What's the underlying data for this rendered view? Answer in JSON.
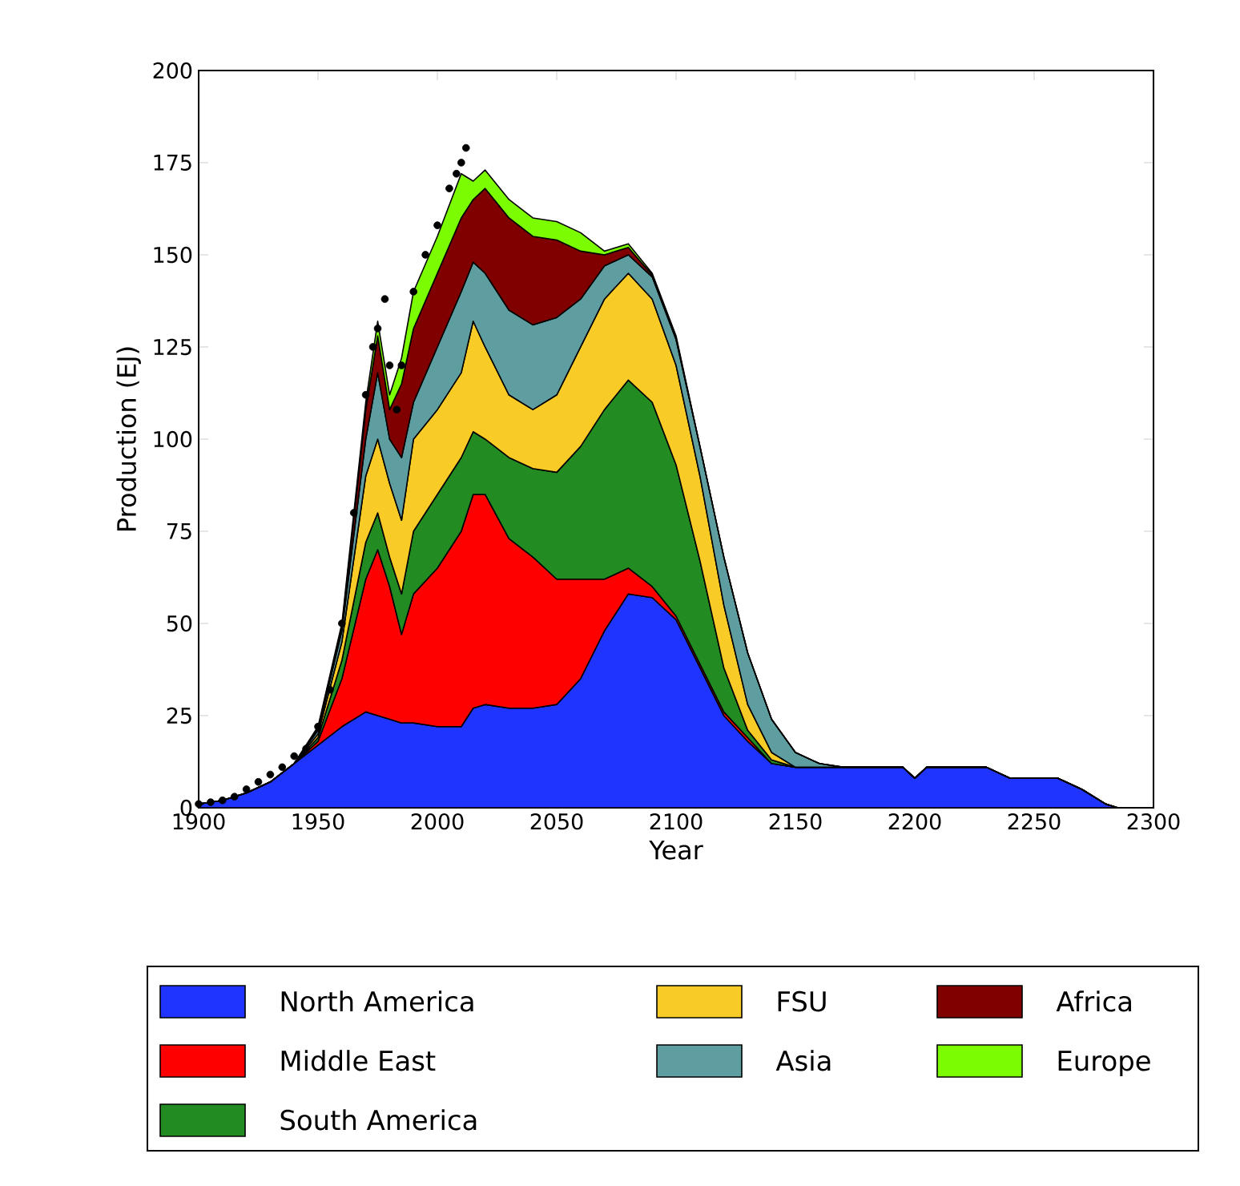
{
  "chart_data": {
    "type": "area",
    "xlabel": "Year",
    "ylabel": "Production (EJ)",
    "stacked": true,
    "legend": "bottom",
    "xlim": [
      1900,
      2300
    ],
    "ylim": [
      0,
      200
    ],
    "xticks": [
      1900,
      1950,
      2000,
      2050,
      2100,
      2150,
      2200,
      2250,
      2300
    ],
    "yticks": [
      0,
      25,
      50,
      75,
      100,
      125,
      150,
      175,
      200
    ],
    "x": [
      1900,
      1910,
      1920,
      1930,
      1940,
      1950,
      1960,
      1970,
      1975,
      1980,
      1985,
      1990,
      2000,
      2010,
      2015,
      2020,
      2030,
      2040,
      2050,
      2060,
      2070,
      2080,
      2090,
      2100,
      2110,
      2120,
      2130,
      2140,
      2150,
      2160,
      2170,
      2180,
      2190,
      2195,
      2200,
      2205,
      2220,
      2230,
      2240,
      2250,
      2260,
      2270,
      2280,
      2285
    ],
    "series": [
      {
        "name": "North America",
        "color": "#1f35ff",
        "values": [
          1,
          2,
          4,
          7,
          12,
          17,
          22,
          26,
          25,
          24,
          23,
          23,
          22,
          22,
          27,
          28,
          27,
          27,
          28,
          35,
          48,
          58,
          57,
          51,
          38,
          25,
          18,
          12,
          11,
          11,
          11,
          11,
          11,
          11,
          8,
          11,
          11,
          11,
          8,
          8,
          8,
          5,
          1,
          0
        ]
      },
      {
        "name": "Middle East",
        "color": "#ff0000",
        "values": [
          0,
          0,
          0,
          0,
          0,
          1,
          13,
          36,
          45,
          36,
          24,
          35,
          43,
          53,
          58,
          57,
          46,
          41,
          34,
          27,
          14,
          7,
          3,
          1,
          1,
          1,
          1,
          0,
          0,
          0,
          0,
          0,
          0,
          0,
          0,
          0,
          0,
          0,
          0,
          0,
          0,
          0,
          0,
          0
        ]
      },
      {
        "name": "South America",
        "color": "#228b22",
        "values": [
          0,
          0,
          0,
          0,
          0,
          1,
          5,
          10,
          10,
          8,
          11,
          17,
          20,
          20,
          17,
          15,
          22,
          24,
          29,
          36,
          46,
          51,
          50,
          41,
          28,
          12,
          2,
          1,
          0,
          0,
          0,
          0,
          0,
          0,
          0,
          0,
          0,
          0,
          0,
          0,
          0,
          0,
          0,
          0
        ]
      },
      {
        "name": "FSU",
        "color": "#f9cb26",
        "values": [
          0,
          0,
          0,
          0,
          0,
          1,
          5,
          18,
          20,
          20,
          20,
          25,
          23,
          23,
          30,
          25,
          17,
          16,
          21,
          27,
          30,
          29,
          28,
          27,
          23,
          17,
          7,
          2,
          0,
          0,
          0,
          0,
          0,
          0,
          0,
          0,
          0,
          0,
          0,
          0,
          0,
          0,
          0,
          0
        ]
      },
      {
        "name": "Asia",
        "color": "#5f9ea0",
        "values": [
          0,
          0,
          0,
          0,
          0,
          1,
          3,
          10,
          18,
          12,
          17,
          10,
          17,
          22,
          16,
          20,
          23,
          23,
          21,
          13,
          9,
          5,
          6,
          7,
          8,
          13,
          14,
          9,
          4,
          1,
          0,
          0,
          0,
          0,
          0,
          0,
          0,
          0,
          0,
          0,
          0,
          0,
          0,
          0
        ]
      },
      {
        "name": "Africa",
        "color": "#800000",
        "values": [
          0,
          0,
          0,
          0,
          0,
          0.5,
          1,
          8,
          10,
          8,
          20,
          20,
          20,
          20,
          17,
          23,
          25,
          24,
          21,
          13,
          3,
          2,
          0.5,
          0.5,
          0,
          0,
          0,
          0,
          0,
          0,
          0,
          0,
          0,
          0,
          0,
          0,
          0,
          0,
          0,
          0,
          0,
          0,
          0,
          0
        ]
      },
      {
        "name": "Europe",
        "color": "#7cfc00",
        "values": [
          0,
          0,
          0,
          0,
          0,
          0.5,
          1,
          2,
          4,
          4,
          7,
          10,
          10,
          12,
          5,
          5,
          5,
          5,
          5,
          5,
          1,
          1,
          0.5,
          0.5,
          0,
          0,
          0,
          0,
          0,
          0,
          0,
          0,
          0,
          0,
          0,
          0,
          0,
          0,
          0,
          0,
          0,
          0,
          0,
          0
        ]
      },
      {
        "type": "scatter",
        "color": "#000000",
        "marker": "circle",
        "x": [
          1900,
          1905,
          1910,
          1915,
          1920,
          1925,
          1930,
          1935,
          1940,
          1945,
          1950,
          1955,
          1960,
          1965,
          1970,
          1973,
          1975,
          1978,
          1980,
          1983,
          1985,
          1990,
          1995,
          2000,
          2005,
          2008,
          2010,
          2012
        ],
        "values": [
          1,
          1.5,
          2,
          3,
          5,
          7,
          9,
          11,
          14,
          16,
          22,
          32,
          50,
          80,
          112,
          125,
          130,
          138,
          120,
          108,
          120,
          140,
          150,
          158,
          168,
          172,
          175,
          179
        ]
      }
    ]
  }
}
